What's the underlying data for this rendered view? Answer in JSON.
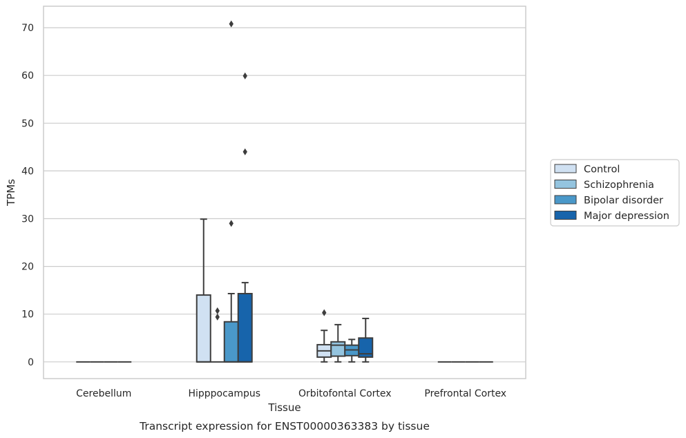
{
  "chart_data": {
    "type": "box",
    "caption": "Transcript expression for ENST00000363383 by tissue",
    "xlabel": "Tissue",
    "ylabel": "TPMs",
    "ylim": [
      -3.5,
      74.5
    ],
    "yticks": [
      0,
      10,
      20,
      30,
      40,
      50,
      60,
      70
    ],
    "grid": "horizontal",
    "legend_position": "right",
    "categories": [
      "Cerebellum",
      "Hipppocampus",
      "Orbitofontal Cortex",
      "Prefrontal Cortex"
    ],
    "series": [
      {
        "name": "Control",
        "color": "#d0e1f2",
        "boxes": [
          {
            "q1": 0,
            "median": 0,
            "q3": 0,
            "whislo": 0,
            "whishi": 0,
            "fliers": []
          },
          {
            "q1": 0,
            "median": 0,
            "q3": 14.0,
            "whislo": 0,
            "whishi": 29.9,
            "fliers": []
          },
          {
            "q1": 1.0,
            "median": 2.3,
            "q3": 3.6,
            "whislo": 0,
            "whishi": 6.6,
            "fliers": [
              10.3
            ]
          },
          {
            "q1": 0,
            "median": 0,
            "q3": 0,
            "whislo": 0,
            "whishi": 0,
            "fliers": []
          }
        ]
      },
      {
        "name": "Schizophrenia",
        "color": "#94c4df",
        "boxes": [
          {
            "q1": 0,
            "median": 0,
            "q3": 0,
            "whislo": 0,
            "whishi": 0,
            "fliers": []
          },
          {
            "q1": 0,
            "median": 0,
            "q3": 0,
            "whislo": 0,
            "whishi": 0,
            "fliers": [
              10.7,
              9.4
            ]
          },
          {
            "q1": 1.2,
            "median": 3.5,
            "q3": 4.2,
            "whislo": 0,
            "whishi": 7.8,
            "fliers": []
          },
          {
            "q1": 0,
            "median": 0,
            "q3": 0,
            "whislo": 0,
            "whishi": 0,
            "fliers": []
          }
        ]
      },
      {
        "name": "Bipolar disorder",
        "color": "#4a98c9",
        "boxes": [
          {
            "q1": 0,
            "median": 0,
            "q3": 0,
            "whislo": 0,
            "whishi": 0,
            "fliers": []
          },
          {
            "q1": 0,
            "median": 0,
            "q3": 8.4,
            "whislo": 0,
            "whishi": 14.3,
            "fliers": [
              29.0,
              70.8
            ]
          },
          {
            "q1": 1.3,
            "median": 2.5,
            "q3": 3.5,
            "whislo": 0,
            "whishi": 4.7,
            "fliers": []
          },
          {
            "q1": 0,
            "median": 0,
            "q3": 0,
            "whislo": 0,
            "whishi": 0,
            "fliers": []
          }
        ]
      },
      {
        "name": "Major depression",
        "color": "#1764ab",
        "boxes": [
          {
            "q1": 0,
            "median": 0,
            "q3": 0,
            "whislo": 0,
            "whishi": 0,
            "fliers": []
          },
          {
            "q1": 0,
            "median": 0,
            "q3": 14.3,
            "whislo": 0,
            "whishi": 16.6,
            "fliers": [
              44.0,
              59.9
            ]
          },
          {
            "q1": 1.0,
            "median": 1.7,
            "q3": 5.0,
            "whislo": 0,
            "whishi": 9.1,
            "fliers": []
          },
          {
            "q1": 0,
            "median": 0,
            "q3": 0,
            "whislo": 0,
            "whishi": 0,
            "fliers": []
          }
        ]
      }
    ]
  }
}
